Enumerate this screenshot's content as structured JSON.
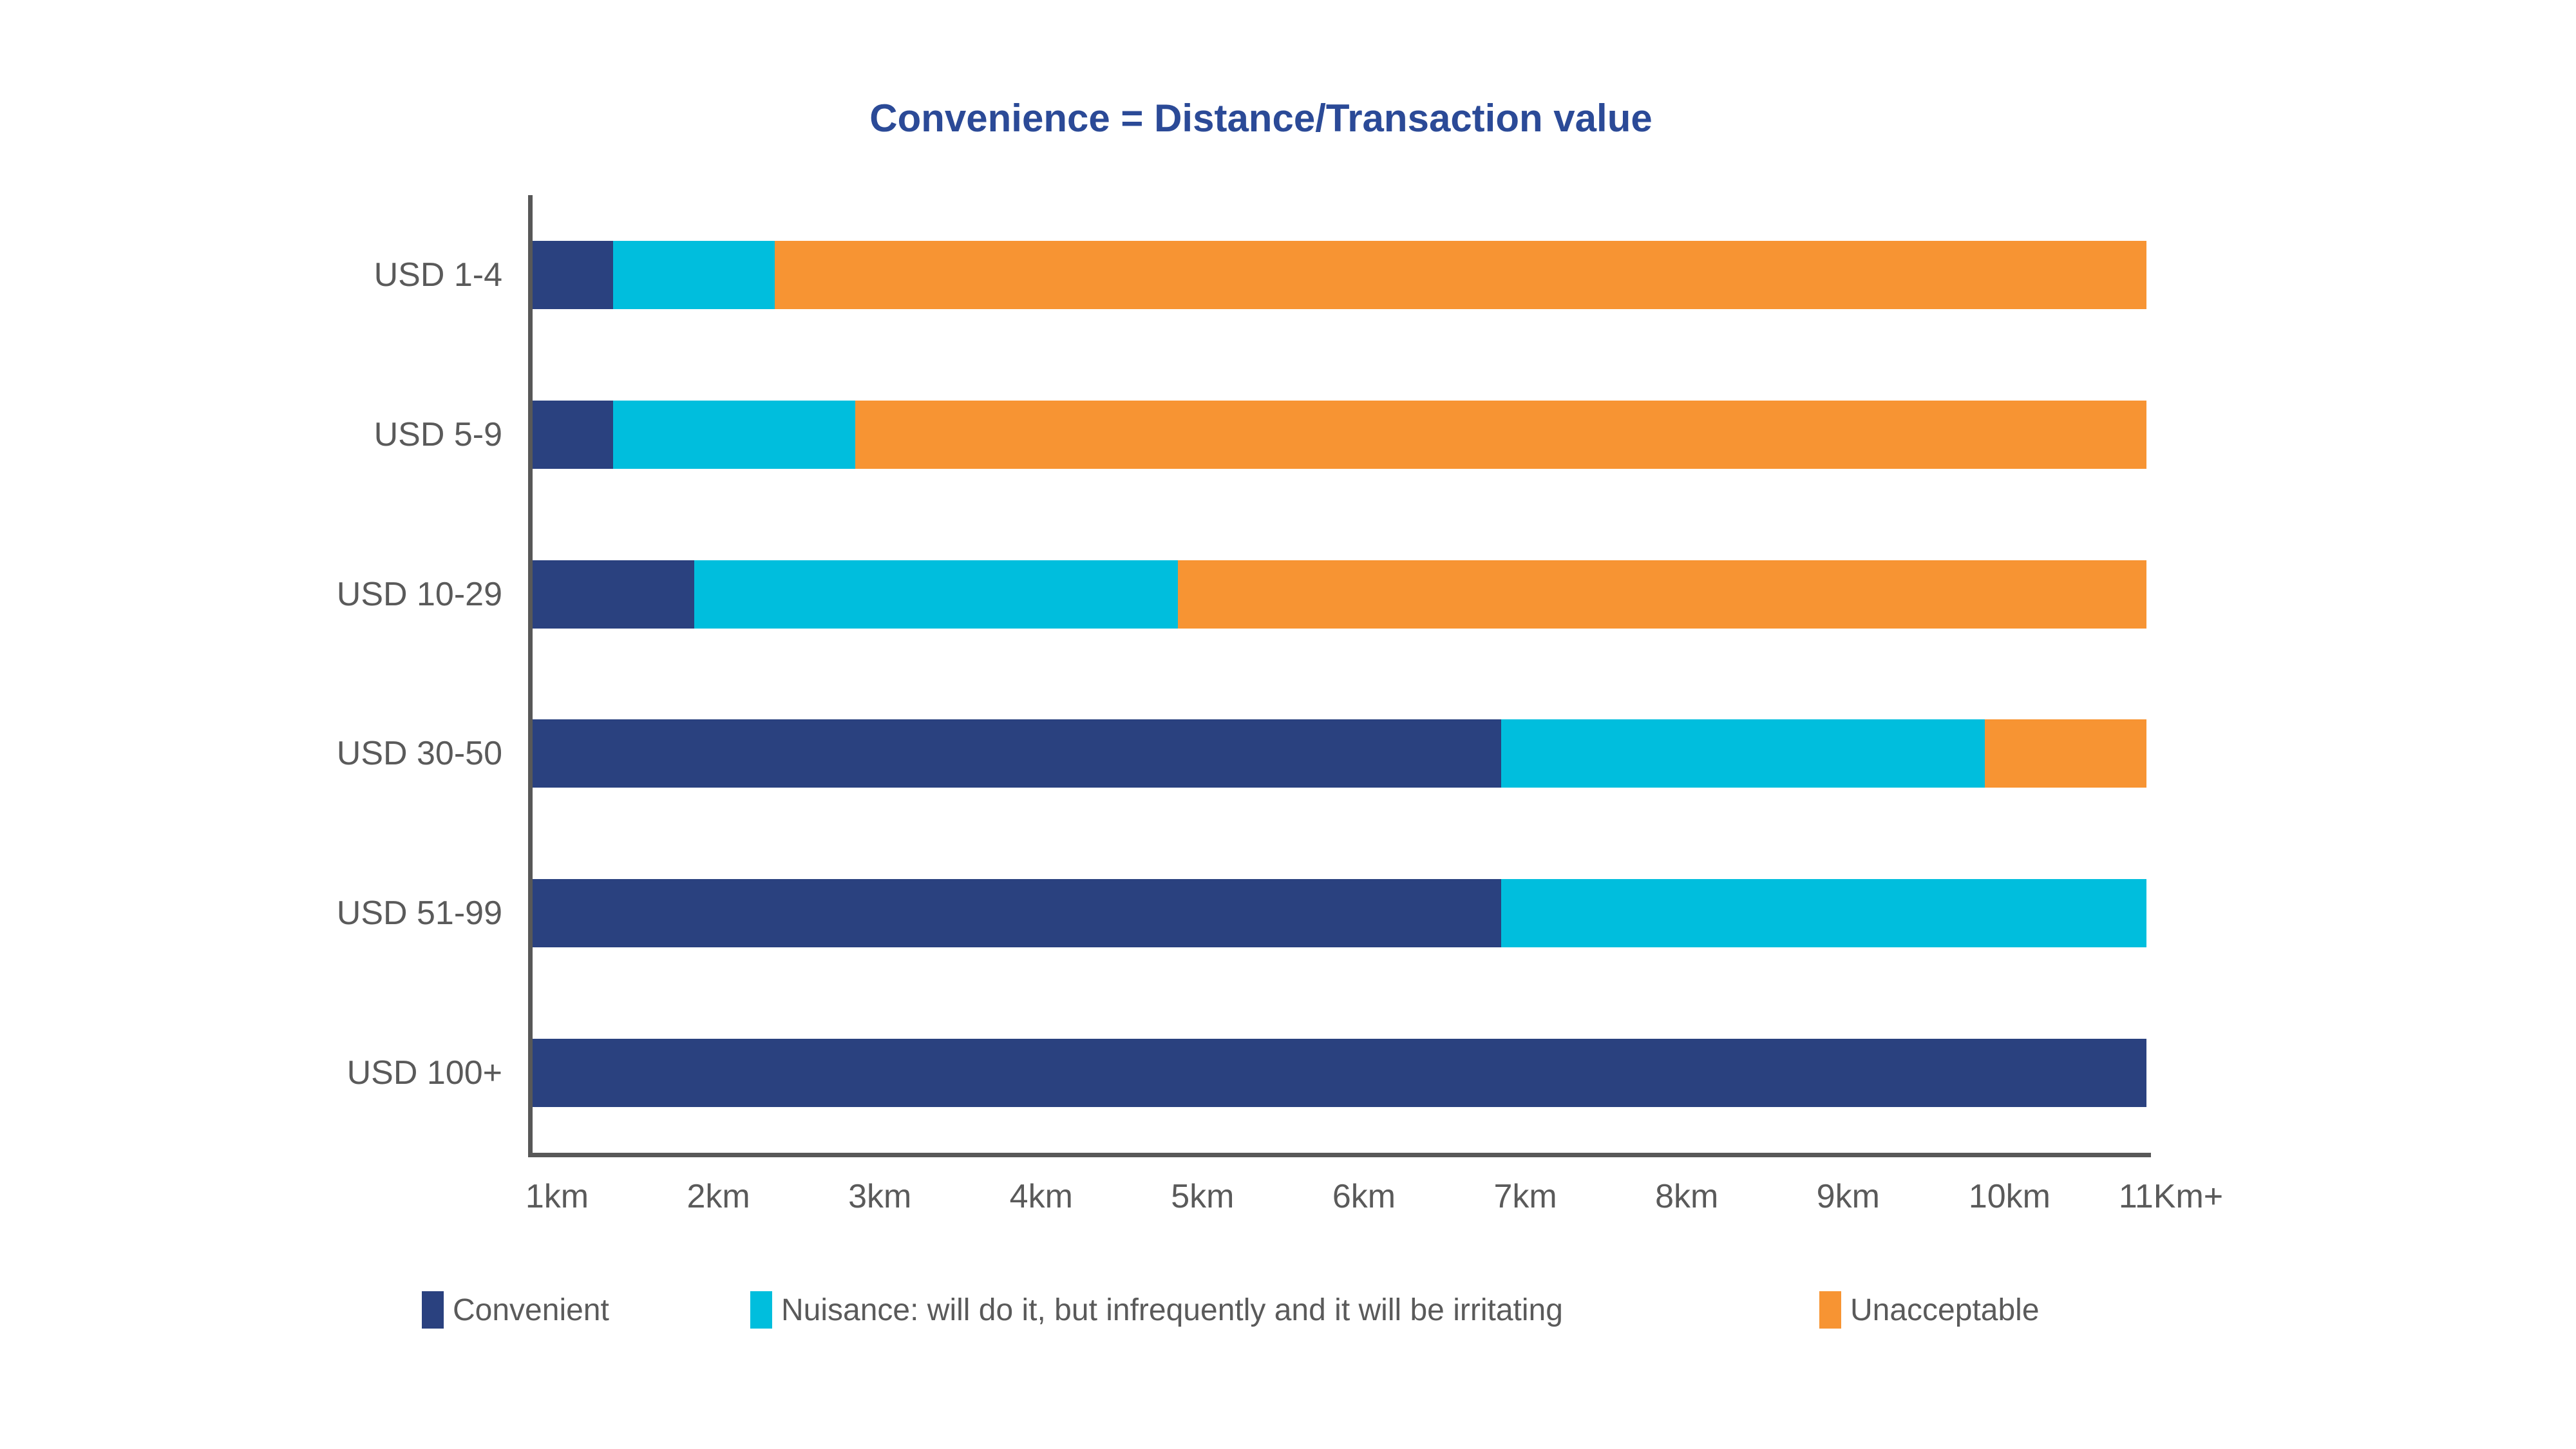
{
  "title": "Convenience = Distance/Transaction value",
  "colors": {
    "convenient": "#2A417F",
    "nuisance": "#00BEDD",
    "unacceptable": "#F79433",
    "title_text": "#2B4A97",
    "axis_line": "#585858",
    "label_text": "#5A5A5A"
  },
  "legend": {
    "items": [
      {
        "label": "Convenient",
        "color": "#2A417F"
      },
      {
        "label": "Nuisance: will do it, but infrequently and it will be irritating",
        "color": "#00BEDD"
      },
      {
        "label": "Unacceptable",
        "color": "#F79433"
      }
    ]
  },
  "chart_data": {
    "type": "bar",
    "orientation": "horizontal",
    "stacked": true,
    "title": "Convenience = Distance/Transaction value",
    "categories": [
      "USD 1-4",
      "USD 5-9",
      "USD 10-29",
      "USD 30-50",
      "USD 51-99",
      "USD 100+"
    ],
    "x_axis": {
      "unit": "km",
      "min": 1,
      "max": 11,
      "tick_labels": [
        "1km",
        "2km",
        "3km",
        "4km",
        "5km",
        "6km",
        "7km",
        "8km",
        "9km",
        "10km",
        "11Km+"
      ]
    },
    "series": [
      {
        "name": "Convenient",
        "color": "#2A417F",
        "segment_end_km": [
          1.5,
          1.5,
          2,
          7,
          7,
          11
        ]
      },
      {
        "name": "Nuisance: will do it, but infrequently and it will be irritating",
        "color": "#00BEDD",
        "segment_end_km": [
          2.5,
          3,
          5,
          10,
          11,
          11
        ]
      },
      {
        "name": "Unacceptable",
        "color": "#F79433",
        "segment_end_km": [
          11,
          11,
          11,
          11,
          11,
          11
        ]
      }
    ],
    "rows": [
      {
        "category": "USD 1-4",
        "convenient_to_km": 1.5,
        "nuisance_to_km": 2.5,
        "unacceptable_to_km": 11
      },
      {
        "category": "USD 5-9",
        "convenient_to_km": 1.5,
        "nuisance_to_km": 3,
        "unacceptable_to_km": 11
      },
      {
        "category": "USD 10-29",
        "convenient_to_km": 2,
        "nuisance_to_km": 5,
        "unacceptable_to_km": 11
      },
      {
        "category": "USD 30-50",
        "convenient_to_km": 7,
        "nuisance_to_km": 10,
        "unacceptable_to_km": 11
      },
      {
        "category": "USD 51-99",
        "convenient_to_km": 7,
        "nuisance_to_km": 11,
        "unacceptable_to_km": null
      },
      {
        "category": "USD 100+",
        "convenient_to_km": 11,
        "nuisance_to_km": null,
        "unacceptable_to_km": null
      }
    ],
    "legend_position": "bottom",
    "grid": false
  }
}
